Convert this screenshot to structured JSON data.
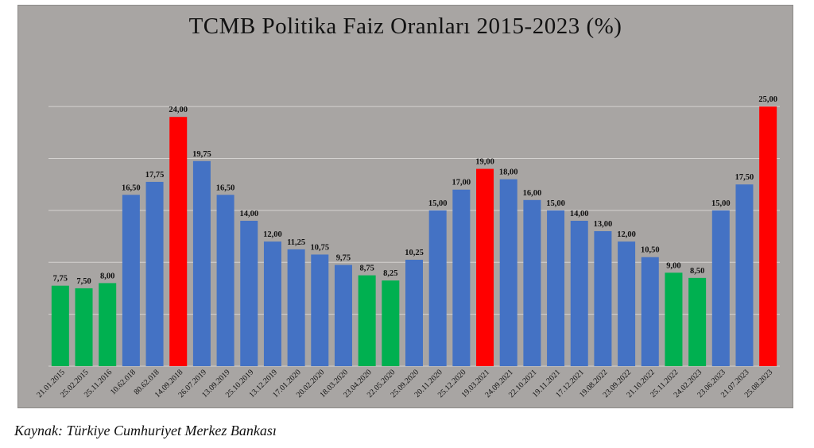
{
  "chart_data": {
    "type": "bar",
    "title": "TCMB Politika Faiz Oranları 2015-2023 (%)",
    "xlabel": "",
    "ylabel": "",
    "ylim": [
      0,
      27
    ],
    "grid": true,
    "categories": [
      "21.01.2015",
      "25.02.2015",
      "25.11.2016",
      "10.62.018",
      "80.62.018",
      "14.09.2018",
      "26.07.2019",
      "13.09.2019",
      "25.10.2019",
      "13.12.2019",
      "17.01.2020",
      "20.02.2020",
      "18.03.2020",
      "23.04.2020",
      "22.05.2020",
      "25.09.2020",
      "20.11.2020",
      "25.12.2020",
      "19.03.2021",
      "24.09.2021",
      "22.10.2021",
      "19.11.2021",
      "17.12.2021",
      "19.08.2022",
      "23.09.2022",
      "21.10.2022",
      "25.11.2022",
      "24.02.2023",
      "23.06.2023",
      "21.07.2023",
      "25.08.2023"
    ],
    "values": [
      7.75,
      7.5,
      8,
      16.5,
      17.75,
      24,
      19.75,
      16.5,
      14,
      12,
      11.25,
      10.75,
      9.75,
      8.75,
      8.25,
      10.25,
      15,
      17,
      19,
      18,
      16,
      15,
      14,
      13,
      12,
      10.5,
      9,
      8.5,
      15,
      17.5,
      25
    ],
    "value_labels": [
      "7,75",
      "7,50",
      "8,00",
      "16,50",
      "17,75",
      "24,00",
      "19,75",
      "16,50",
      "14,00",
      "12,00",
      "11,25",
      "10,75",
      "9,75",
      "8,75",
      "8,25",
      "10,25",
      "15,00",
      "17,00",
      "19,00",
      "18,00",
      "16,00",
      "15,00",
      "14,00",
      "13,00",
      "12,00",
      "10,50",
      "9,00",
      "8,50",
      "15,00",
      "17,50",
      "25,00"
    ],
    "bar_colors": [
      "#00b050",
      "#00b050",
      "#00b050",
      "#4472c4",
      "#4472c4",
      "#ff0000",
      "#4472c4",
      "#4472c4",
      "#4472c4",
      "#4472c4",
      "#4472c4",
      "#4472c4",
      "#4472c4",
      "#00b050",
      "#00b050",
      "#4472c4",
      "#4472c4",
      "#4472c4",
      "#ff0000",
      "#4472c4",
      "#4472c4",
      "#4472c4",
      "#4472c4",
      "#4472c4",
      "#4472c4",
      "#4472c4",
      "#00b050",
      "#00b050",
      "#4472c4",
      "#4472c4",
      "#ff0000"
    ]
  },
  "source": "Kaynak: Türkiye Cumhuriyet Merkez Bankası"
}
